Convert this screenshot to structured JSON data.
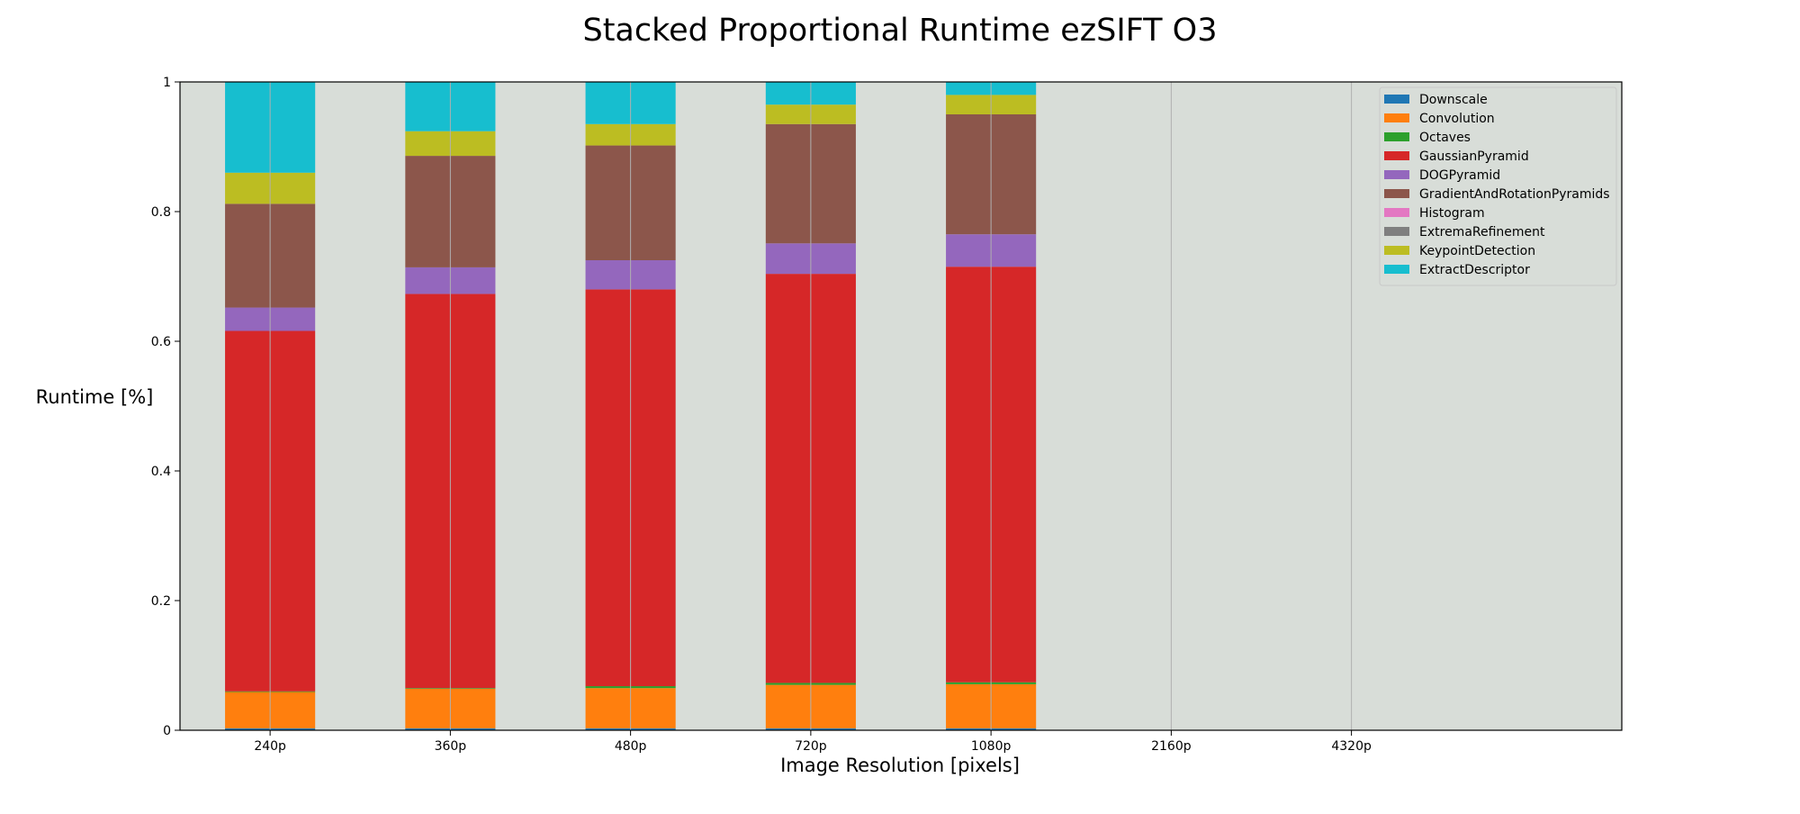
{
  "chart_data": {
    "type": "bar",
    "stacked": true,
    "title": "Stacked Proportional Runtime ezSIFT O3",
    "xlabel": "Image Resolution [pixels]",
    "ylabel": "Runtime [%]",
    "ylim": [
      0,
      1
    ],
    "yticks": [
      "0",
      "0.2",
      "0.4",
      "0.6",
      "0.8",
      "1"
    ],
    "ytick_values": [
      0,
      0.2,
      0.4,
      0.6,
      0.8,
      1
    ],
    "categories": [
      "240p",
      "360p",
      "480p",
      "720p",
      "1080p",
      "2160p",
      "4320p"
    ],
    "grid": "vertical",
    "legend_position": "top-right",
    "plot_background": "#d8ddd8",
    "series": [
      {
        "name": "Downscale",
        "color": "#1f77b4",
        "values": [
          0.003,
          0.003,
          0.003,
          0.003,
          0.003,
          null,
          null
        ]
      },
      {
        "name": "Convolution",
        "color": "#ff7f0e",
        "values": [
          0.056,
          0.061,
          0.062,
          0.067,
          0.068,
          null,
          null
        ]
      },
      {
        "name": "Octaves",
        "color": "#2ca02c",
        "values": [
          0.001,
          0.001,
          0.003,
          0.003,
          0.003,
          null,
          null
        ]
      },
      {
        "name": "GaussianPyramid",
        "color": "#d62728",
        "values": [
          0.556,
          0.608,
          0.612,
          0.631,
          0.641,
          null,
          null
        ]
      },
      {
        "name": "DOGPyramid",
        "color": "#9467bd",
        "values": [
          0.036,
          0.041,
          0.045,
          0.047,
          0.05,
          null,
          null
        ]
      },
      {
        "name": "GradientAndRotationPyramids",
        "color": "#8c564b",
        "values": [
          0.16,
          0.172,
          0.177,
          0.184,
          0.185,
          null,
          null
        ]
      },
      {
        "name": "Histogram",
        "color": "#e377c2",
        "values": [
          0.0,
          0.0,
          0.0,
          0.0,
          0.0,
          null,
          null
        ]
      },
      {
        "name": "ExtremaRefinement",
        "color": "#7f7f7f",
        "values": [
          0.0,
          0.0,
          0.0,
          0.0,
          0.0,
          null,
          null
        ]
      },
      {
        "name": "KeypointDetection",
        "color": "#bcbd22",
        "values": [
          0.048,
          0.038,
          0.033,
          0.03,
          0.03,
          null,
          null
        ]
      },
      {
        "name": "ExtractDescriptor",
        "color": "#17becf",
        "values": [
          0.14,
          0.076,
          0.065,
          0.035,
          0.02,
          null,
          null
        ]
      }
    ]
  }
}
